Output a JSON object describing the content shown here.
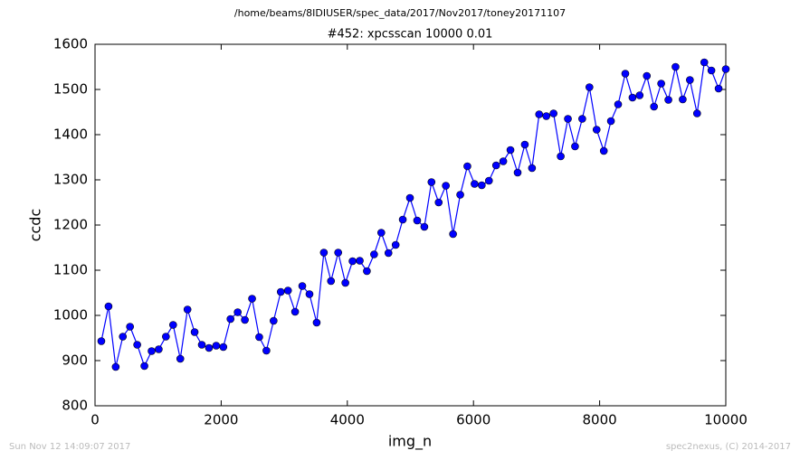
{
  "chart_data": {
    "type": "line",
    "suptitle": "/home/beams/8IDIUSER/spec_data/2017/Nov2017/toney20171107",
    "title": "#452: xpcsscan 10000 0.01",
    "xlabel": "img_n",
    "ylabel": "ccdc",
    "x": [
      100,
      214,
      328,
      441,
      555,
      669,
      783,
      897,
      1010,
      1124,
      1238,
      1352,
      1466,
      1579,
      1693,
      1807,
      1921,
      2034,
      2148,
      2262,
      2376,
      2490,
      2603,
      2717,
      2831,
      2945,
      3059,
      3172,
      3286,
      3400,
      3514,
      3628,
      3741,
      3855,
      3969,
      4083,
      4197,
      4310,
      4424,
      4538,
      4652,
      4766,
      4879,
      4993,
      5107,
      5221,
      5334,
      5448,
      5562,
      5676,
      5790,
      5903,
      6017,
      6131,
      6245,
      6359,
      6472,
      6586,
      6700,
      6814,
      6928,
      7041,
      7155,
      7269,
      7383,
      7497,
      7610,
      7724,
      7838,
      7952,
      8066,
      8179,
      8293,
      8407,
      8521,
      8634,
      8748,
      8862,
      8976,
      9090,
      9203,
      9317,
      9431,
      9545,
      9659,
      9772,
      9886,
      10000
    ],
    "series": [
      {
        "name": "ccdc",
        "color": "#0000ff",
        "values": [
          943,
          1020,
          886,
          953,
          975,
          935,
          888,
          921,
          925,
          953,
          979,
          904,
          1013,
          963,
          935,
          928,
          933,
          930,
          992,
          1007,
          990,
          1037,
          952,
          922,
          988,
          1052,
          1055,
          1008,
          1065,
          1047,
          984,
          1139,
          1076,
          1139,
          1072,
          1120,
          1121,
          1098,
          1135,
          1183,
          1138,
          1156,
          1212,
          1260,
          1210,
          1196,
          1295,
          1250,
          1287,
          1180,
          1267,
          1330,
          1291,
          1288,
          1298,
          1332,
          1341,
          1366,
          1316,
          1378,
          1326,
          1445,
          1441,
          1447,
          1352,
          1435,
          1374,
          1435,
          1505,
          1411,
          1364,
          1430,
          1467,
          1535,
          1482,
          1487,
          1530,
          1462,
          1513,
          1477,
          1550,
          1478,
          1521,
          1447,
          1560,
          1542,
          1502,
          1545
        ]
      }
    ],
    "xlim": [
      0,
      10000
    ],
    "xticks": [
      0,
      2000,
      4000,
      6000,
      8000,
      10000
    ],
    "ylim": [
      800,
      1600
    ],
    "yticks": [
      800,
      900,
      1000,
      1100,
      1200,
      1300,
      1400,
      1500,
      1600
    ],
    "grid": false
  },
  "footer": {
    "left": "Sun Nov 12 14:09:07 2017",
    "right": "spec2nexus, (C) 2014-2017"
  }
}
